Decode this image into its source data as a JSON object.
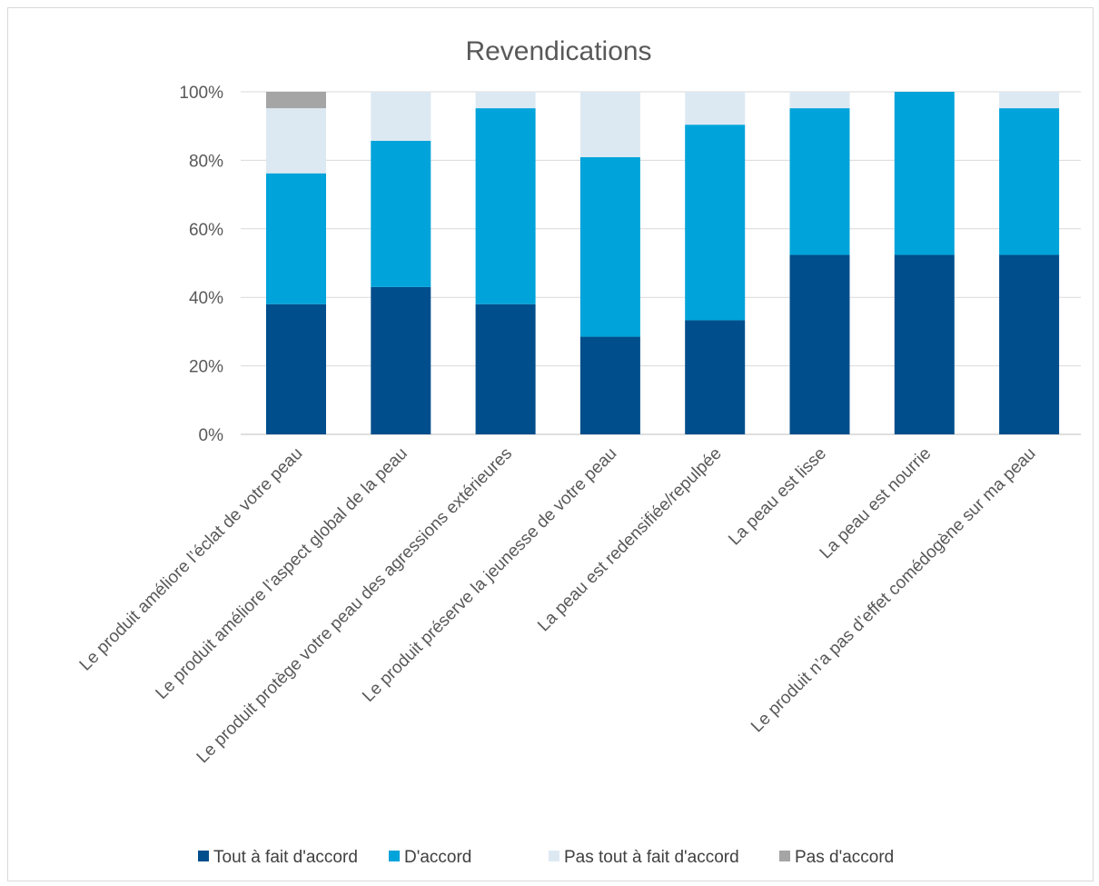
{
  "chart_data": {
    "type": "bar",
    "stacked": true,
    "percent_stacked": true,
    "title": "Revendications",
    "xlabel": "",
    "ylabel": "",
    "ylim": [
      0,
      100
    ],
    "yticks": [
      "0%",
      "20%",
      "40%",
      "60%",
      "80%",
      "100%"
    ],
    "grid": true,
    "legend_position": "bottom",
    "categories": [
      "Le produit améliore l’éclat de votre peau",
      "Le produit améliore l’aspect global de la peau",
      "Le produit protège votre peau des agressions extérieures",
      "Le produit préserve la jeunesse de votre peau",
      "La peau est redensifiée/repulpée",
      "La peau est lisse",
      "La peau est nourrie",
      "Le produit n’a pas d’effet comédogène sur ma peau"
    ],
    "series": [
      {
        "name": "Tout à fait d'accord",
        "color": "#004e8c",
        "values": [
          38,
          43,
          38,
          28.5,
          33.3,
          52.4,
          52.4,
          52.4
        ]
      },
      {
        "name": "D'accord",
        "color": "#00a3da",
        "values": [
          38.2,
          42.7,
          57.2,
          52.4,
          57.1,
          42.8,
          47.6,
          42.8
        ]
      },
      {
        "name": "Pas tout à fait d'accord",
        "color": "#dde9f2",
        "values": [
          19,
          14.3,
          4.8,
          19.1,
          9.6,
          4.8,
          0,
          4.8
        ]
      },
      {
        "name": "Pas d'accord",
        "color": "#a5a5a5",
        "values": [
          4.8,
          0,
          0,
          0,
          0,
          0,
          0,
          0
        ]
      }
    ]
  }
}
